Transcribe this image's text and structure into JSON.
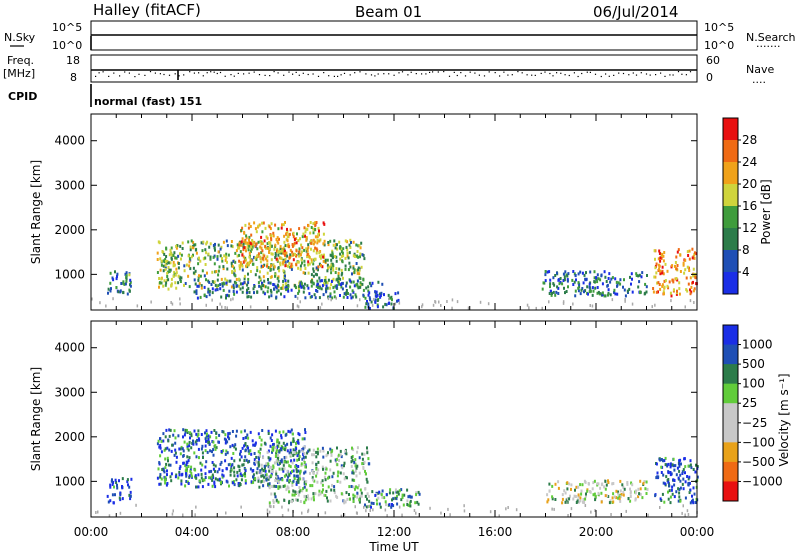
{
  "header": {
    "station": "Halley (fitACF)",
    "beam": "Beam 01",
    "date": "06/Jul/2014"
  },
  "strips": {
    "nsky_label": "N.Sky",
    "nsearch_label": "N.Search",
    "nsearch_dots": "·······",
    "count_ticks": [
      "10^5",
      "10^0"
    ],
    "freq_label_1": "Freq.",
    "freq_label_2": "[MHz]",
    "freq_ticks": [
      "18",
      "8"
    ],
    "nave_label": "Nave",
    "nave_dots": "····",
    "nave_ticks": [
      "60",
      "0"
    ],
    "cpid_label": "CPID",
    "cpid_value": "normal (fast) 151"
  },
  "colors": {
    "power_scale": [
      "#1a2ee6",
      "#1f4fb5",
      "#2c7c4a",
      "#3f9c3c",
      "#cfd43c",
      "#f0a21a",
      "#ef6a14",
      "#e81010"
    ],
    "velocity_scale": [
      "#1a2ee6",
      "#1f4fb5",
      "#2c7c4a",
      "#61cc3a",
      "#c8c8c8",
      "#c8c8c8",
      "#e8a21a",
      "#ef6a14",
      "#e81010"
    ]
  },
  "chart_data": [
    {
      "type": "heatmap",
      "panel": "power",
      "ylabel": "Slant Range [km]",
      "xlabel": "Time UT",
      "x_ticks": [
        "00:00",
        "04:00",
        "08:00",
        "12:00",
        "16:00",
        "20:00",
        "00:00"
      ],
      "y_ticks": [
        1000,
        2000,
        3000,
        4000
      ],
      "xlim_hours": [
        0,
        24
      ],
      "ylim_km": [
        200,
        4600
      ],
      "colorbar_label": "Power [dB]",
      "colorbar_ticks": [
        "4",
        "8",
        "12",
        "16",
        "20",
        "24",
        "28"
      ],
      "colorbar_range": [
        0,
        32
      ],
      "echo_regions": [
        {
          "t_start": 0.6,
          "t_end": 1.6,
          "r_min": 550,
          "r_max": 1100,
          "level": 0.3
        },
        {
          "t_start": 2.6,
          "t_end": 10.8,
          "r_min": 700,
          "r_max": 1800,
          "level": 0.45
        },
        {
          "t_start": 5.8,
          "t_end": 9.2,
          "r_min": 1200,
          "r_max": 2200,
          "level": 0.7
        },
        {
          "t_start": 4.0,
          "t_end": 11.5,
          "r_min": 500,
          "r_max": 900,
          "level": 0.25
        },
        {
          "t_start": 10.8,
          "t_end": 12.2,
          "r_min": 250,
          "r_max": 650,
          "level": 0.2
        },
        {
          "t_start": 17.8,
          "t_end": 22.0,
          "r_min": 550,
          "r_max": 1100,
          "level": 0.25
        },
        {
          "t_start": 22.2,
          "t_end": 24.0,
          "r_min": 550,
          "r_max": 1600,
          "level": 0.75
        }
      ]
    },
    {
      "type": "heatmap",
      "panel": "velocity",
      "ylabel": "Slant Range [km]",
      "xlabel": "Time UT",
      "x_ticks": [
        "00:00",
        "04:00",
        "08:00",
        "12:00",
        "16:00",
        "20:00",
        "00:00"
      ],
      "y_ticks": [
        1000,
        2000,
        3000,
        4000
      ],
      "xlim_hours": [
        0,
        24
      ],
      "ylim_km": [
        200,
        4600
      ],
      "colorbar_label": "Velocity [m s⁻¹]",
      "colorbar_ticks": [
        "1000",
        "500",
        "100",
        "25",
        "−25",
        "−100",
        "−500",
        "−1000"
      ],
      "colorbar_range": [
        -1250,
        1250
      ],
      "echo_regions": [
        {
          "t_start": 0.6,
          "t_end": 1.6,
          "r_min": 550,
          "r_max": 1100,
          "level": 0.15
        },
        {
          "t_start": 2.6,
          "t_end": 8.5,
          "r_min": 900,
          "r_max": 2200,
          "level": 0.2
        },
        {
          "t_start": 6.5,
          "t_end": 11.0,
          "r_min": 1000,
          "r_max": 1800,
          "level": 0.4
        },
        {
          "t_start": 7.0,
          "t_end": 11.0,
          "r_min": 550,
          "r_max": 950,
          "level": 0.42
        },
        {
          "t_start": 10.8,
          "t_end": 13.0,
          "r_min": 450,
          "r_max": 850,
          "level": 0.28
        },
        {
          "t_start": 18.0,
          "t_end": 22.0,
          "r_min": 550,
          "r_max": 1050,
          "level": 0.5
        },
        {
          "t_start": 22.3,
          "t_end": 24.0,
          "r_min": 550,
          "r_max": 1550,
          "level": 0.15
        }
      ]
    }
  ]
}
